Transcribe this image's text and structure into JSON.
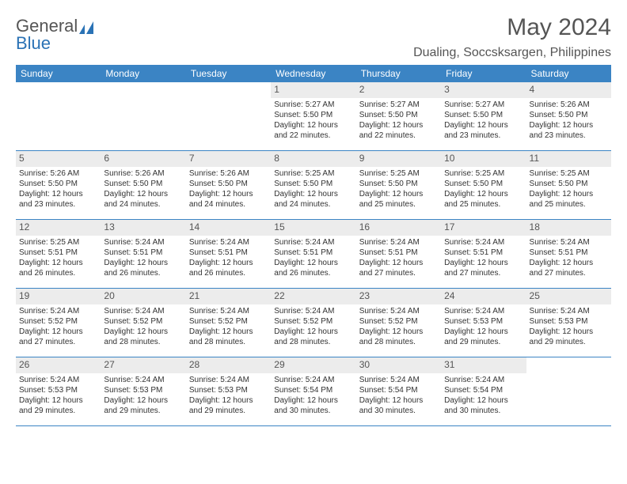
{
  "brand": {
    "line1": "General",
    "line2": "Blue"
  },
  "title": "May 2024",
  "location": "Dualing, Soccsksargen, Philippines",
  "colors": {
    "header_bg": "#3b84c4",
    "header_text": "#ffffff",
    "daynum_bg": "#ececec",
    "text": "#333333",
    "title_text": "#555555",
    "brand_blue": "#2a72b5",
    "row_border": "#3b84c4"
  },
  "day_headers": [
    "Sunday",
    "Monday",
    "Tuesday",
    "Wednesday",
    "Thursday",
    "Friday",
    "Saturday"
  ],
  "weeks": [
    [
      {
        "num": "",
        "sunrise": "",
        "sunset": "",
        "daylight": ""
      },
      {
        "num": "",
        "sunrise": "",
        "sunset": "",
        "daylight": ""
      },
      {
        "num": "",
        "sunrise": "",
        "sunset": "",
        "daylight": ""
      },
      {
        "num": "1",
        "sunrise": "Sunrise: 5:27 AM",
        "sunset": "Sunset: 5:50 PM",
        "daylight": "Daylight: 12 hours and 22 minutes."
      },
      {
        "num": "2",
        "sunrise": "Sunrise: 5:27 AM",
        "sunset": "Sunset: 5:50 PM",
        "daylight": "Daylight: 12 hours and 22 minutes."
      },
      {
        "num": "3",
        "sunrise": "Sunrise: 5:27 AM",
        "sunset": "Sunset: 5:50 PM",
        "daylight": "Daylight: 12 hours and 23 minutes."
      },
      {
        "num": "4",
        "sunrise": "Sunrise: 5:26 AM",
        "sunset": "Sunset: 5:50 PM",
        "daylight": "Daylight: 12 hours and 23 minutes."
      }
    ],
    [
      {
        "num": "5",
        "sunrise": "Sunrise: 5:26 AM",
        "sunset": "Sunset: 5:50 PM",
        "daylight": "Daylight: 12 hours and 23 minutes."
      },
      {
        "num": "6",
        "sunrise": "Sunrise: 5:26 AM",
        "sunset": "Sunset: 5:50 PM",
        "daylight": "Daylight: 12 hours and 24 minutes."
      },
      {
        "num": "7",
        "sunrise": "Sunrise: 5:26 AM",
        "sunset": "Sunset: 5:50 PM",
        "daylight": "Daylight: 12 hours and 24 minutes."
      },
      {
        "num": "8",
        "sunrise": "Sunrise: 5:25 AM",
        "sunset": "Sunset: 5:50 PM",
        "daylight": "Daylight: 12 hours and 24 minutes."
      },
      {
        "num": "9",
        "sunrise": "Sunrise: 5:25 AM",
        "sunset": "Sunset: 5:50 PM",
        "daylight": "Daylight: 12 hours and 25 minutes."
      },
      {
        "num": "10",
        "sunrise": "Sunrise: 5:25 AM",
        "sunset": "Sunset: 5:50 PM",
        "daylight": "Daylight: 12 hours and 25 minutes."
      },
      {
        "num": "11",
        "sunrise": "Sunrise: 5:25 AM",
        "sunset": "Sunset: 5:50 PM",
        "daylight": "Daylight: 12 hours and 25 minutes."
      }
    ],
    [
      {
        "num": "12",
        "sunrise": "Sunrise: 5:25 AM",
        "sunset": "Sunset: 5:51 PM",
        "daylight": "Daylight: 12 hours and 26 minutes."
      },
      {
        "num": "13",
        "sunrise": "Sunrise: 5:24 AM",
        "sunset": "Sunset: 5:51 PM",
        "daylight": "Daylight: 12 hours and 26 minutes."
      },
      {
        "num": "14",
        "sunrise": "Sunrise: 5:24 AM",
        "sunset": "Sunset: 5:51 PM",
        "daylight": "Daylight: 12 hours and 26 minutes."
      },
      {
        "num": "15",
        "sunrise": "Sunrise: 5:24 AM",
        "sunset": "Sunset: 5:51 PM",
        "daylight": "Daylight: 12 hours and 26 minutes."
      },
      {
        "num": "16",
        "sunrise": "Sunrise: 5:24 AM",
        "sunset": "Sunset: 5:51 PM",
        "daylight": "Daylight: 12 hours and 27 minutes."
      },
      {
        "num": "17",
        "sunrise": "Sunrise: 5:24 AM",
        "sunset": "Sunset: 5:51 PM",
        "daylight": "Daylight: 12 hours and 27 minutes."
      },
      {
        "num": "18",
        "sunrise": "Sunrise: 5:24 AM",
        "sunset": "Sunset: 5:51 PM",
        "daylight": "Daylight: 12 hours and 27 minutes."
      }
    ],
    [
      {
        "num": "19",
        "sunrise": "Sunrise: 5:24 AM",
        "sunset": "Sunset: 5:52 PM",
        "daylight": "Daylight: 12 hours and 27 minutes."
      },
      {
        "num": "20",
        "sunrise": "Sunrise: 5:24 AM",
        "sunset": "Sunset: 5:52 PM",
        "daylight": "Daylight: 12 hours and 28 minutes."
      },
      {
        "num": "21",
        "sunrise": "Sunrise: 5:24 AM",
        "sunset": "Sunset: 5:52 PM",
        "daylight": "Daylight: 12 hours and 28 minutes."
      },
      {
        "num": "22",
        "sunrise": "Sunrise: 5:24 AM",
        "sunset": "Sunset: 5:52 PM",
        "daylight": "Daylight: 12 hours and 28 minutes."
      },
      {
        "num": "23",
        "sunrise": "Sunrise: 5:24 AM",
        "sunset": "Sunset: 5:52 PM",
        "daylight": "Daylight: 12 hours and 28 minutes."
      },
      {
        "num": "24",
        "sunrise": "Sunrise: 5:24 AM",
        "sunset": "Sunset: 5:53 PM",
        "daylight": "Daylight: 12 hours and 29 minutes."
      },
      {
        "num": "25",
        "sunrise": "Sunrise: 5:24 AM",
        "sunset": "Sunset: 5:53 PM",
        "daylight": "Daylight: 12 hours and 29 minutes."
      }
    ],
    [
      {
        "num": "26",
        "sunrise": "Sunrise: 5:24 AM",
        "sunset": "Sunset: 5:53 PM",
        "daylight": "Daylight: 12 hours and 29 minutes."
      },
      {
        "num": "27",
        "sunrise": "Sunrise: 5:24 AM",
        "sunset": "Sunset: 5:53 PM",
        "daylight": "Daylight: 12 hours and 29 minutes."
      },
      {
        "num": "28",
        "sunrise": "Sunrise: 5:24 AM",
        "sunset": "Sunset: 5:53 PM",
        "daylight": "Daylight: 12 hours and 29 minutes."
      },
      {
        "num": "29",
        "sunrise": "Sunrise: 5:24 AM",
        "sunset": "Sunset: 5:54 PM",
        "daylight": "Daylight: 12 hours and 30 minutes."
      },
      {
        "num": "30",
        "sunrise": "Sunrise: 5:24 AM",
        "sunset": "Sunset: 5:54 PM",
        "daylight": "Daylight: 12 hours and 30 minutes."
      },
      {
        "num": "31",
        "sunrise": "Sunrise: 5:24 AM",
        "sunset": "Sunset: 5:54 PM",
        "daylight": "Daylight: 12 hours and 30 minutes."
      },
      {
        "num": "",
        "sunrise": "",
        "sunset": "",
        "daylight": ""
      }
    ]
  ]
}
